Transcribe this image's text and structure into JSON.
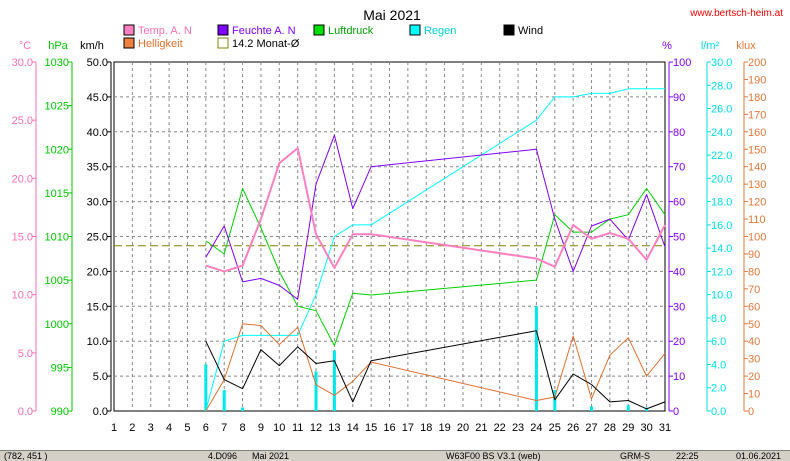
{
  "chart_data": {
    "type": "line",
    "title": "Mai 2021",
    "website": "www.bertsch-heim.at",
    "x": [
      1,
      2,
      3,
      4,
      5,
      6,
      7,
      8,
      9,
      10,
      11,
      12,
      13,
      14,
      15,
      16,
      17,
      18,
      19,
      20,
      21,
      22,
      23,
      24,
      25,
      26,
      27,
      28,
      29,
      30,
      31
    ],
    "xlim": [
      1,
      31
    ],
    "axes": [
      {
        "id": "temp",
        "label": "°C",
        "range": [
          0,
          30
        ],
        "ticks": [
          "30.0",
          "25.0",
          "20.0",
          "15.0",
          "10.0",
          "5.0",
          "0.0"
        ],
        "color": "#ff6eb4"
      },
      {
        "id": "press",
        "label": "hPa",
        "range": [
          990,
          1030
        ],
        "ticks": [
          "1030",
          "1025",
          "1020",
          "1015",
          "1010",
          "1005",
          "1000",
          "995",
          "990"
        ],
        "color": "#00c800"
      },
      {
        "id": "wind",
        "label": "km/h",
        "range": [
          0,
          50
        ],
        "ticks": [
          "50.0",
          "45.0",
          "40.0",
          "35.0",
          "30.0",
          "25.0",
          "20.0",
          "15.0",
          "10.0",
          "5.0",
          "0.0"
        ],
        "color": "#000000"
      },
      {
        "id": "hum",
        "label": "%",
        "range": [
          0,
          100
        ],
        "ticks": [
          "100",
          "90",
          "80",
          "70",
          "60",
          "50",
          "40",
          "30",
          "20",
          "10",
          "0"
        ],
        "color": "#8000ff"
      },
      {
        "id": "rain",
        "label": "l/m²",
        "range": [
          0,
          30
        ],
        "ticks": [
          "30.0",
          "28.0",
          "26.0",
          "24.0",
          "22.0",
          "20.0",
          "18.0",
          "16.0",
          "14.0",
          "12.0",
          "10.0",
          "8.0",
          "6.0",
          "4.0",
          "2.0",
          "0.0"
        ],
        "color": "#00e0e0"
      },
      {
        "id": "lux",
        "label": "klux",
        "range": [
          0,
          200
        ],
        "ticks": [
          "200",
          "190",
          "180",
          "170",
          "160",
          "150",
          "140",
          "130",
          "120",
          "110",
          "100",
          "90",
          "80",
          "70",
          "60",
          "50",
          "40",
          "30",
          "20",
          "10",
          "0"
        ],
        "color": "#e07838"
      }
    ],
    "legend": [
      {
        "name": "Temp. A. N",
        "color": "#ff80c0",
        "box": "filled"
      },
      {
        "name": "Feuchte A. N",
        "color": "#8000ff",
        "box": "filled"
      },
      {
        "name": "Luftdruck",
        "color": "#00e000",
        "box": "filled"
      },
      {
        "name": "Regen",
        "color": "#00ffff",
        "box": "filled"
      },
      {
        "name": "Wind",
        "color": "#000000",
        "box": "filled"
      },
      {
        "name": "Helligkeit",
        "color": "#f08040",
        "box": "filled"
      },
      {
        "name": "14.2 Monat-Ø",
        "color": "#808000",
        "box": "outline"
      }
    ],
    "series": [
      {
        "name": "Temp. A. N",
        "axis": "temp",
        "color": "#ff80c0",
        "width": 2,
        "points": [
          [
            6,
            12.5
          ],
          [
            7,
            12.0
          ],
          [
            8,
            12.5
          ],
          [
            9,
            16.5
          ],
          [
            10,
            21.3
          ],
          [
            11,
            22.6
          ],
          [
            12,
            15.2
          ],
          [
            13,
            12.3
          ],
          [
            14,
            15.2
          ],
          [
            15,
            15.2
          ],
          [
            24,
            13.1
          ],
          [
            25,
            12.4
          ],
          [
            26,
            16.0
          ],
          [
            27,
            14.8
          ],
          [
            28,
            15.3
          ],
          [
            29,
            14.8
          ],
          [
            30,
            13.0
          ],
          [
            31,
            16.0
          ]
        ]
      },
      {
        "name": "Feuchte A. N",
        "axis": "hum",
        "color": "#8000ff",
        "width": 1,
        "points": [
          [
            6,
            44
          ],
          [
            7,
            53
          ],
          [
            8,
            37
          ],
          [
            9,
            38
          ],
          [
            10,
            36
          ],
          [
            11,
            32
          ],
          [
            12,
            65
          ],
          [
            13,
            79
          ],
          [
            14,
            58
          ],
          [
            15,
            70
          ],
          [
            24,
            75
          ],
          [
            25,
            55
          ],
          [
            26,
            40
          ],
          [
            27,
            53
          ],
          [
            28,
            55
          ],
          [
            29,
            49
          ],
          [
            30,
            62
          ],
          [
            31,
            47
          ]
        ]
      },
      {
        "name": "Luftdruck",
        "axis": "press",
        "color": "#00d000",
        "width": 1,
        "points": [
          [
            6,
            1009.5
          ],
          [
            7,
            1008.0
          ],
          [
            8,
            1015.5
          ],
          [
            9,
            1011.0
          ],
          [
            10,
            1006.0
          ],
          [
            11,
            1002.0
          ],
          [
            12,
            1001.5
          ],
          [
            13,
            997.5
          ],
          [
            14,
            1003.5
          ],
          [
            15,
            1003.3
          ],
          [
            24,
            1005.0
          ],
          [
            25,
            1012.5
          ],
          [
            26,
            1010.5
          ],
          [
            27,
            1010.5
          ],
          [
            28,
            1012.0
          ],
          [
            29,
            1012.5
          ],
          [
            30,
            1015.5
          ],
          [
            31,
            1012.5
          ]
        ]
      },
      {
        "name": "Regen",
        "axis": "rain",
        "color": "#00ffff",
        "width": 1,
        "points": [
          [
            6,
            0.0
          ],
          [
            7,
            6.0
          ],
          [
            8,
            6.5
          ],
          [
            9,
            6.5
          ],
          [
            10,
            6.5
          ],
          [
            11,
            6.5
          ],
          [
            12,
            10.0
          ],
          [
            13,
            15.0
          ],
          [
            14,
            16.0
          ],
          [
            15,
            16.0
          ],
          [
            24,
            25.0
          ],
          [
            25,
            27.0
          ],
          [
            26,
            27.0
          ],
          [
            27,
            27.3
          ],
          [
            28,
            27.3
          ],
          [
            29,
            27.7
          ],
          [
            30,
            27.7
          ],
          [
            31,
            27.7
          ]
        ]
      },
      {
        "name": "Wind",
        "axis": "wind",
        "color": "#000000",
        "width": 1,
        "points": [
          [
            6,
            10.0
          ],
          [
            7,
            4.5
          ],
          [
            8,
            3.2
          ],
          [
            9,
            8.8
          ],
          [
            10,
            6.5
          ],
          [
            11,
            9.2
          ],
          [
            12,
            6.8
          ],
          [
            13,
            7.2
          ],
          [
            14,
            1.3
          ],
          [
            15,
            7.2
          ],
          [
            24,
            11.5
          ],
          [
            25,
            1.6
          ],
          [
            26,
            5.3
          ],
          [
            27,
            3.8
          ],
          [
            28,
            1.3
          ],
          [
            29,
            1.5
          ],
          [
            30,
            0.3
          ],
          [
            31,
            1.3
          ]
        ]
      },
      {
        "name": "Helligkeit",
        "axis": "lux",
        "color": "#e07030",
        "width": 1,
        "points": [
          [
            6,
            0
          ],
          [
            7,
            18
          ],
          [
            8,
            50
          ],
          [
            9,
            49
          ],
          [
            10,
            38
          ],
          [
            11,
            48
          ],
          [
            12,
            15
          ],
          [
            13,
            9
          ],
          [
            14,
            17
          ],
          [
            15,
            28
          ],
          [
            24,
            6
          ],
          [
            25,
            8
          ],
          [
            26,
            43
          ],
          [
            27,
            7
          ],
          [
            28,
            32
          ],
          [
            29,
            42
          ],
          [
            30,
            20
          ],
          [
            31,
            33
          ]
        ]
      }
    ],
    "rain_bars": [
      [
        6,
        4.0
      ],
      [
        7,
        1.8
      ],
      [
        8,
        0.3
      ],
      [
        12,
        3.4
      ],
      [
        13,
        5.2
      ],
      [
        24,
        9.0
      ],
      [
        25,
        1.8
      ],
      [
        27,
        0.4
      ],
      [
        29,
        0.5
      ],
      [
        30,
        0.3
      ]
    ],
    "reference_line": {
      "name": "14.2 Monat-Ø",
      "axis": "temp",
      "value": 14.2,
      "color": "#808000"
    }
  },
  "statusbar": {
    "coords": "(782, 451 )",
    "count": "4.D096",
    "period": "Mai 2021",
    "file": "W63F00 BS V3.1 (web)",
    "mode": "GRM-S",
    "time": "22:25",
    "date": "01.06.2021"
  }
}
